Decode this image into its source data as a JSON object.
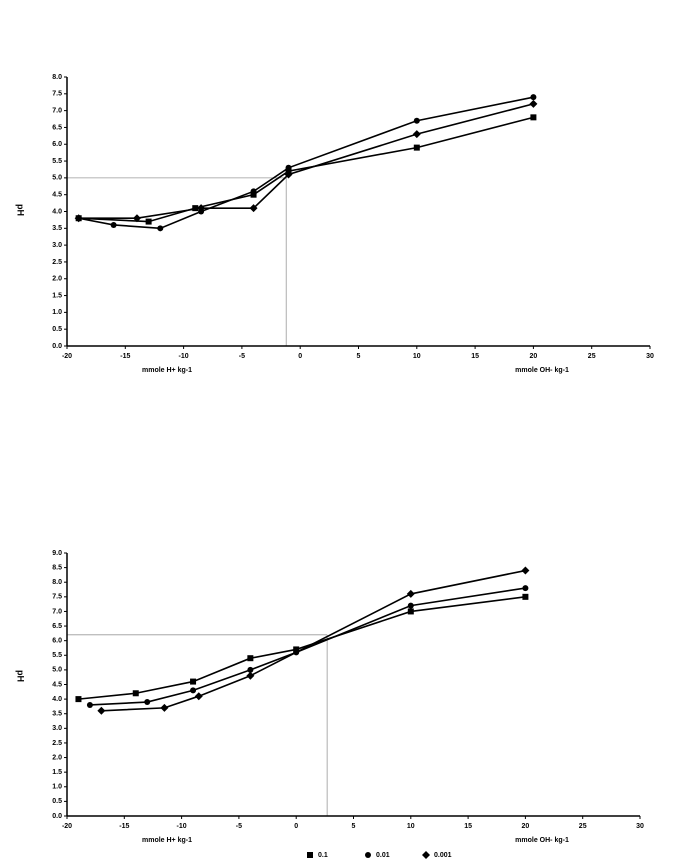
{
  "chart_data": [
    {
      "type": "line",
      "y_label": "pH",
      "x_label_left": "mmole H+ kg-1",
      "x_label_right": "mmole OH- kg-1",
      "xlim": [
        -20,
        30
      ],
      "xticks": [
        -20,
        -15,
        -10,
        -5,
        0,
        5,
        10,
        15,
        20,
        25,
        30
      ],
      "ylim": [
        0,
        8
      ],
      "yticks": [
        {
          "value": 0,
          "label": "0.0"
        },
        {
          "value": 0.5,
          "label": "0.5"
        },
        {
          "value": 1,
          "label": "1.0"
        },
        {
          "value": 1.5,
          "label": "1.5"
        },
        {
          "value": 2,
          "label": "2.0"
        },
        {
          "value": 2.5,
          "label": "2.5"
        },
        {
          "value": 3,
          "label": "3.0"
        },
        {
          "value": 3.5,
          "label": "3.5"
        },
        {
          "value": 4,
          "label": "4.0"
        },
        {
          "value": 4.5,
          "label": "4.5"
        },
        {
          "value": 5,
          "label": "5.0"
        },
        {
          "value": 5.5,
          "label": "5.5"
        },
        {
          "value": 6,
          "label": "6.0"
        },
        {
          "value": 6.5,
          "label": "6.5"
        },
        {
          "value": 7,
          "label": "7.0"
        },
        {
          "value": 7.5,
          "label": "7.5"
        },
        {
          "value": 8,
          "label": "8.0"
        }
      ],
      "reference_lines": {
        "x": -1.2,
        "y": 5.0
      },
      "legend": false,
      "series": [
        {
          "color": "#000000",
          "marker": "square",
          "x": [
            -19,
            -13,
            -9,
            -4,
            -1,
            10,
            20
          ],
          "values": [
            3.8,
            3.7,
            4.1,
            4.5,
            5.2,
            5.9,
            6.8
          ]
        },
        {
          "color": "#000000",
          "marker": "circle",
          "x": [
            -19,
            -16,
            -12,
            -8.5,
            -4,
            -1,
            10,
            20
          ],
          "values": [
            3.8,
            3.6,
            3.5,
            4.0,
            4.6,
            5.3,
            6.7,
            7.4
          ]
        },
        {
          "color": "#000000",
          "marker": "diamond",
          "x": [
            -19,
            -14,
            -8.5,
            -4,
            -1,
            10,
            20
          ],
          "values": [
            3.8,
            3.8,
            4.1,
            4.1,
            5.1,
            6.3,
            7.2
          ]
        }
      ]
    },
    {
      "type": "line",
      "y_label": "pH",
      "x_label_left": "mmole H+ kg-1",
      "x_label_right": "mmole OH- kg-1",
      "xlim": [
        -20,
        30
      ],
      "xticks": [
        -20,
        -15,
        -10,
        -5,
        0,
        5,
        10,
        15,
        20,
        25,
        30
      ],
      "ylim": [
        0,
        9
      ],
      "yticks": [
        {
          "value": 0,
          "label": "0.0"
        },
        {
          "value": 0.5,
          "label": "0.5"
        },
        {
          "value": 1,
          "label": "1.0"
        },
        {
          "value": 1.5,
          "label": "1.5"
        },
        {
          "value": 2,
          "label": "2.0"
        },
        {
          "value": 2.5,
          "label": "2.5"
        },
        {
          "value": 3,
          "label": "3.0"
        },
        {
          "value": 3.5,
          "label": "3.5"
        },
        {
          "value": 4,
          "label": "4.0"
        },
        {
          "value": 4.5,
          "label": "4.5"
        },
        {
          "value": 5,
          "label": "5.0"
        },
        {
          "value": 5.5,
          "label": "5.5"
        },
        {
          "value": 6,
          "label": "6.0"
        },
        {
          "value": 6.5,
          "label": "6.5"
        },
        {
          "value": 7,
          "label": "7.0"
        },
        {
          "value": 7.5,
          "label": "7.5"
        },
        {
          "value": 8,
          "label": "8.0"
        },
        {
          "value": 8.5,
          "label": "8.5"
        },
        {
          "value": 9,
          "label": "9.0"
        }
      ],
      "reference_lines": {
        "x": 2.7,
        "y": 6.2
      },
      "legend": true,
      "series": [
        {
          "name": "0.1",
          "color": "#000000",
          "marker": "square",
          "x": [
            -19,
            -14,
            -9,
            -4,
            0,
            10,
            20
          ],
          "values": [
            4.0,
            4.2,
            4.6,
            5.4,
            5.7,
            7.0,
            7.5
          ]
        },
        {
          "name": "0.01",
          "color": "#000000",
          "marker": "circle",
          "x": [
            -18,
            -13,
            -9,
            -4,
            0,
            10,
            20
          ],
          "values": [
            3.8,
            3.9,
            4.3,
            5.0,
            5.6,
            7.2,
            7.8
          ]
        },
        {
          "name": "0.001",
          "color": "#000000",
          "marker": "diamond",
          "x": [
            -17,
            -11.5,
            -8.5,
            -4,
            10,
            20
          ],
          "values": [
            3.6,
            3.7,
            4.1,
            4.8,
            7.6,
            8.4
          ]
        }
      ]
    }
  ]
}
